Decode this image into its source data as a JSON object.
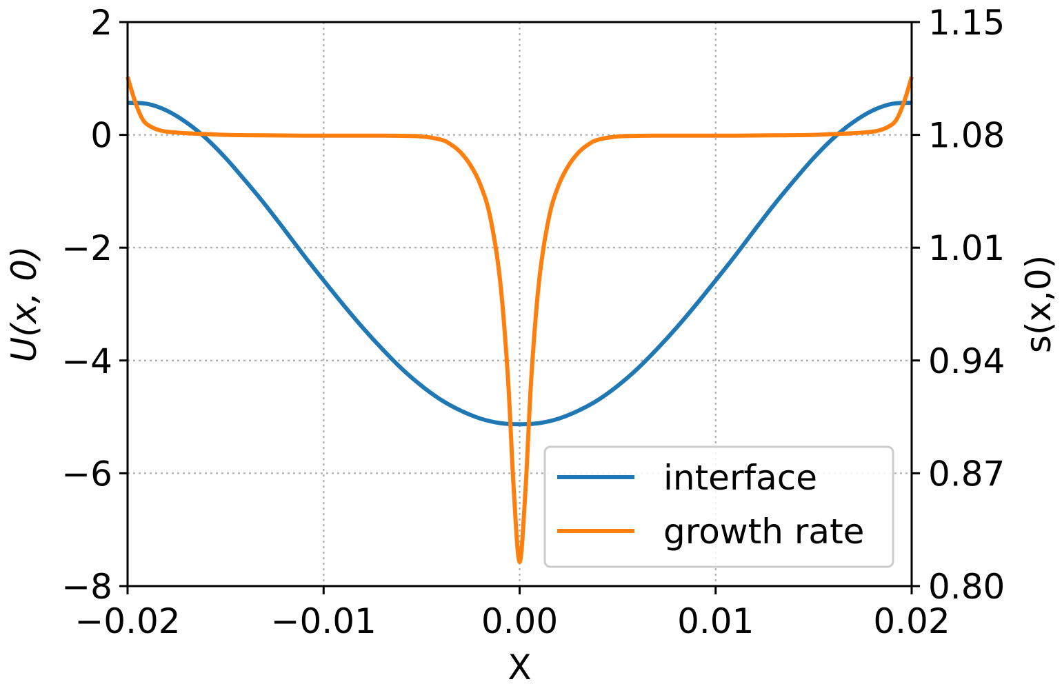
{
  "chart_data": {
    "type": "line",
    "title": "",
    "xlabel": "X",
    "ylabel_left": "U(x, 0)",
    "ylabel_right": "s(x,0)",
    "xlim": [
      -0.02,
      0.02
    ],
    "ylim_left": [
      -8,
      2
    ],
    "ylim_right": [
      0.8,
      1.15
    ],
    "x_ticks": [
      -0.02,
      -0.01,
      0.0,
      0.01,
      0.02
    ],
    "x_tick_labels": [
      "−0.02",
      "−0.01",
      "0.00",
      "0.01",
      "0.02"
    ],
    "y_left_ticks": [
      2,
      0,
      -2,
      -4,
      -6,
      -8
    ],
    "y_left_tick_labels": [
      "2",
      "0",
      "−2",
      "−4",
      "−6",
      "−8"
    ],
    "y_right_ticks": [
      1.15,
      1.08,
      1.01,
      0.94,
      0.87,
      0.8
    ],
    "y_right_tick_labels": [
      "1.15",
      "1.08",
      "1.01",
      "0.94",
      "0.87",
      "0.80"
    ],
    "grid": true,
    "legend_position": "lower-right",
    "series": [
      {
        "name": "interface",
        "axis": "left",
        "color": "#1f77b4",
        "x": [
          -0.02,
          -0.019,
          -0.018,
          -0.017,
          -0.016,
          -0.015,
          -0.014,
          -0.013,
          -0.012,
          -0.011,
          -0.01,
          -0.009,
          -0.008,
          -0.007,
          -0.006,
          -0.005,
          -0.004,
          -0.003,
          -0.002,
          -0.001,
          0.0,
          0.001,
          0.002,
          0.003,
          0.004,
          0.005,
          0.006,
          0.007,
          0.008,
          0.009,
          0.01,
          0.011,
          0.012,
          0.013,
          0.014,
          0.015,
          0.016,
          0.017,
          0.018,
          0.019,
          0.02
        ],
        "y": [
          0.57,
          0.55,
          0.43,
          0.22,
          -0.06,
          -0.41,
          -0.81,
          -1.23,
          -1.68,
          -2.14,
          -2.58,
          -3.01,
          -3.42,
          -3.8,
          -4.15,
          -4.45,
          -4.7,
          -4.89,
          -5.03,
          -5.11,
          -5.13,
          -5.11,
          -5.03,
          -4.89,
          -4.7,
          -4.45,
          -4.15,
          -3.8,
          -3.42,
          -3.01,
          -2.58,
          -2.14,
          -1.68,
          -1.23,
          -0.81,
          -0.41,
          -0.06,
          0.22,
          0.43,
          0.55,
          0.57
        ]
      },
      {
        "name": "growth rate",
        "axis": "right",
        "color": "#ff7f0e",
        "x": [
          -0.02,
          -0.0196,
          -0.0192,
          -0.0188,
          -0.0184,
          -0.018,
          -0.017,
          -0.016,
          -0.015,
          -0.014,
          -0.013,
          -0.012,
          -0.011,
          -0.01,
          -0.009,
          -0.008,
          -0.007,
          -0.006,
          -0.005,
          -0.004,
          -0.0035,
          -0.003,
          -0.0025,
          -0.002,
          -0.0015,
          -0.001,
          -0.0006,
          -0.0003,
          0.0,
          0.0003,
          0.0006,
          0.001,
          0.0015,
          0.002,
          0.0025,
          0.003,
          0.0035,
          0.004,
          0.005,
          0.006,
          0.007,
          0.008,
          0.009,
          0.01,
          0.011,
          0.012,
          0.013,
          0.014,
          0.015,
          0.016,
          0.017,
          0.018,
          0.0184,
          0.0188,
          0.0192,
          0.0196,
          0.02
        ],
        "y": [
          1.116,
          1.1,
          1.089,
          1.085,
          1.083,
          1.082,
          1.081,
          1.0805,
          1.08,
          1.0798,
          1.0797,
          1.0796,
          1.0795,
          1.0795,
          1.0795,
          1.0795,
          1.0795,
          1.0794,
          1.079,
          1.077,
          1.074,
          1.069,
          1.061,
          1.049,
          1.029,
          0.99,
          0.93,
          0.86,
          0.815,
          0.86,
          0.93,
          0.99,
          1.029,
          1.049,
          1.061,
          1.069,
          1.074,
          1.077,
          1.079,
          1.0794,
          1.0795,
          1.0795,
          1.0795,
          1.0795,
          1.0795,
          1.0796,
          1.0797,
          1.0798,
          1.08,
          1.0805,
          1.081,
          1.082,
          1.083,
          1.085,
          1.089,
          1.1,
          1.116
        ]
      }
    ]
  }
}
